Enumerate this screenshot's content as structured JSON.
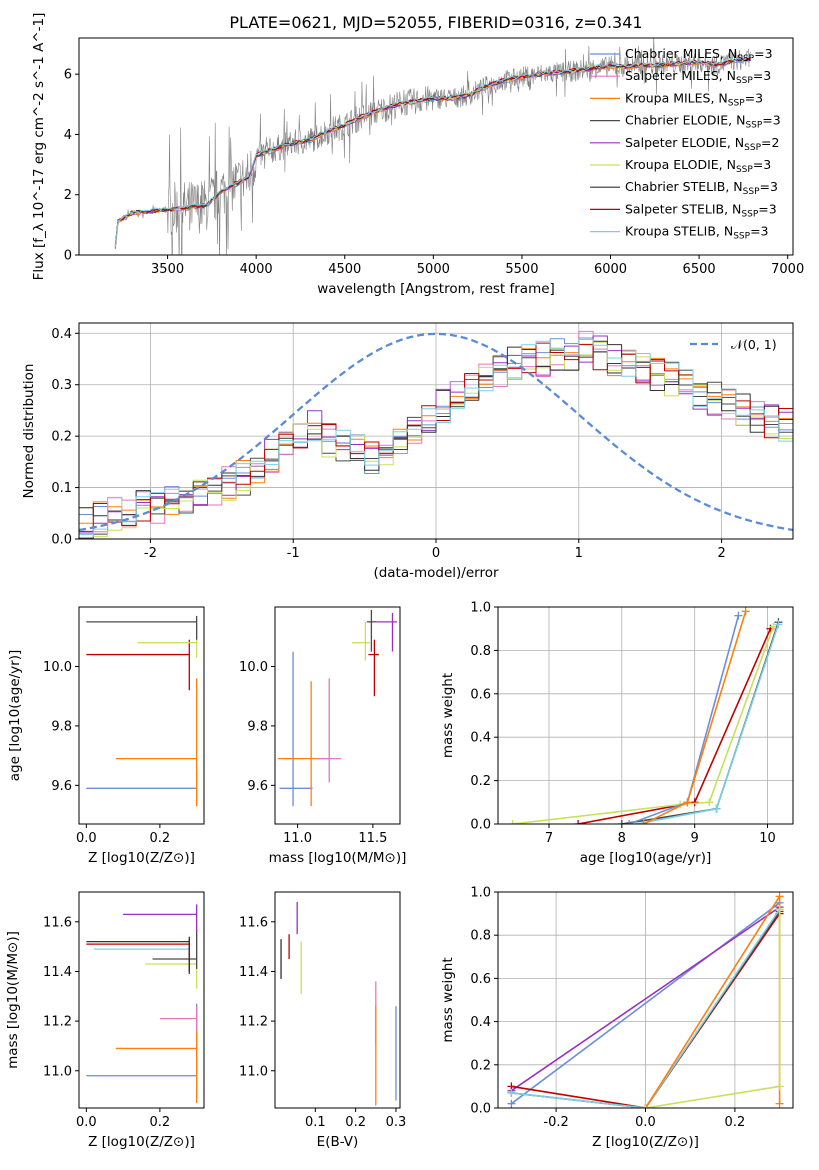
{
  "title": "PLATE=0621, MJD=52055, FIBERID=0316, z=0.341",
  "colors": {
    "chabrier_miles": "#6a8fd8",
    "salpeter_miles": "#e377c2",
    "kroupa_miles": "#ff7f0e",
    "chabrier_elodie": "#4a4a4a",
    "salpeter_elodie": "#9b30c0",
    "kroupa_elodie": "#c8e05a",
    "chabrier_stelib": "#333333",
    "salpeter_stelib": "#c00000",
    "kroupa_stelib": "#7ccfe0",
    "data_spectrum": "#808080",
    "normal_curve": "#5b8bd6",
    "grid": "#b0b0b0"
  },
  "chart_data": [
    {
      "type": "line",
      "panel": "spectrum",
      "xlabel": "wavelength [Angstrom, rest frame]",
      "ylabel": "Flux [f_λ 10^-17 erg cm^-2 s^-1 A^-1]",
      "xlim": [
        3000,
        7030
      ],
      "ylim": [
        0,
        7.2
      ],
      "xticks": [
        3500,
        4000,
        4500,
        5000,
        5500,
        6000,
        6500,
        7000
      ],
      "yticks": [
        0,
        2,
        4,
        6
      ],
      "grid": false,
      "legend_position": "top-right",
      "legend": [
        {
          "key": "chabrier_miles",
          "text": "Chabrier MILES, N",
          "sub": "SSP",
          "tail": "=3"
        },
        {
          "key": "salpeter_miles",
          "text": "Salpeter MILES, N",
          "sub": "SSP",
          "tail": "=3"
        },
        {
          "key": "kroupa_miles",
          "text": "Kroupa MILES, N",
          "sub": "SSP",
          "tail": "=3"
        },
        {
          "key": "chabrier_elodie",
          "text": "Chabrier ELODIE, N",
          "sub": "SSP",
          "tail": "=3"
        },
        {
          "key": "salpeter_elodie",
          "text": "Salpeter ELODIE, N",
          "sub": "SSP",
          "tail": "=2"
        },
        {
          "key": "kroupa_elodie",
          "text": "Kroupa ELODIE, N",
          "sub": "SSP",
          "tail": "=3"
        },
        {
          "key": "chabrier_stelib",
          "text": "Chabrier STELIB, N",
          "sub": "SSP",
          "tail": "=3"
        },
        {
          "key": "salpeter_stelib",
          "text": "Salpeter STELIB, N",
          "sub": "SSP",
          "tail": "=3"
        },
        {
          "key": "kroupa_stelib",
          "text": "Kroupa STELIB, N",
          "sub": "SSP",
          "tail": "=3"
        }
      ],
      "model_continuum": [
        [
          3200,
          0
        ],
        [
          3220,
          1.1
        ],
        [
          3300,
          1.4
        ],
        [
          3400,
          1.45
        ],
        [
          3500,
          1.5
        ],
        [
          3560,
          1.55
        ],
        [
          3650,
          1.6
        ],
        [
          3720,
          1.65
        ],
        [
          3800,
          2.1
        ],
        [
          3860,
          2.3
        ],
        [
          3900,
          2.4
        ],
        [
          3960,
          2.6
        ],
        [
          4000,
          3.3
        ],
        [
          4100,
          3.5
        ],
        [
          4200,
          3.7
        ],
        [
          4300,
          3.8
        ],
        [
          4400,
          4.1
        ],
        [
          4500,
          4.3
        ],
        [
          4600,
          4.6
        ],
        [
          4700,
          4.8
        ],
        [
          4800,
          5.0
        ],
        [
          4900,
          5.1
        ],
        [
          5000,
          5.2
        ],
        [
          5100,
          5.2
        ],
        [
          5200,
          5.3
        ],
        [
          5300,
          5.6
        ],
        [
          5400,
          5.8
        ],
        [
          5500,
          5.9
        ],
        [
          5600,
          6.0
        ],
        [
          5700,
          6.05
        ],
        [
          5800,
          6.1
        ],
        [
          5900,
          6.2
        ],
        [
          6000,
          6.25
        ],
        [
          6100,
          6.25
        ],
        [
          6200,
          6.3
        ],
        [
          6300,
          6.3
        ],
        [
          6400,
          6.35
        ],
        [
          6500,
          6.4
        ],
        [
          6600,
          6.3
        ],
        [
          6700,
          6.45
        ],
        [
          6800,
          6.5
        ]
      ]
    },
    {
      "type": "line",
      "panel": "residual-histogram",
      "xlabel": "(data-model)/error",
      "ylabel": "Normed distribution",
      "xlim": [
        -2.5,
        2.5
      ],
      "ylim": [
        0,
        0.42
      ],
      "xticks": [
        -2,
        -1,
        0,
        1,
        2
      ],
      "yticks": [
        0.0,
        0.1,
        0.2,
        0.3,
        0.4
      ],
      "grid": true,
      "legend_position": "top-right",
      "legend": [
        {
          "key": "normal_curve",
          "text": "𝒩(0, 1)"
        }
      ],
      "bin_width": 0.1,
      "reference_histogram": [
        0.03,
        0.04,
        0.05,
        0.05,
        0.06,
        0.06,
        0.07,
        0.08,
        0.09,
        0.1,
        0.11,
        0.12,
        0.14,
        0.16,
        0.18,
        0.2,
        0.22,
        0.19,
        0.18,
        0.17,
        0.16,
        0.17,
        0.2,
        0.22,
        0.24,
        0.26,
        0.28,
        0.3,
        0.32,
        0.33,
        0.34,
        0.35,
        0.35,
        0.36,
        0.36,
        0.37,
        0.36,
        0.35,
        0.34,
        0.33,
        0.32,
        0.31,
        0.3,
        0.28,
        0.27,
        0.26,
        0.25,
        0.24,
        0.23,
        0.22,
        0.21,
        0.2,
        0.19,
        0.17,
        0.16,
        0.15,
        0.13,
        0.12,
        0.1,
        0.09,
        0.08,
        0.07,
        0.07,
        0.06,
        0.05,
        0.05,
        0.04,
        0.04,
        0.04,
        0.03,
        0.03,
        0.03,
        0.03,
        0.03,
        0.03,
        0.03,
        0.03,
        0.03,
        0.03,
        0.03
      ]
    },
    {
      "type": "scatter",
      "panel": "age-vs-Z",
      "xlabel": "Z [log10(Z/Z⊙)]",
      "ylabel": "age  [log10(age/yr)]",
      "xlim": [
        -0.02,
        0.32
      ],
      "ylim": [
        9.47,
        10.2
      ],
      "xticks": [
        0.0,
        0.2
      ],
      "yticks": [
        9.6,
        9.8,
        10.0
      ],
      "points": [
        {
          "key": "chabrier_miles",
          "x": 0.3,
          "y": 9.59,
          "xerr": [
            0.3,
            0.0
          ],
          "yerr": [
            0.06,
            0.06
          ]
        },
        {
          "key": "kroupa_miles",
          "x": 0.3,
          "y": 9.69,
          "xerr": [
            0.22,
            0.0
          ],
          "yerr": [
            0.16,
            0.27
          ]
        },
        {
          "key": "salpeter_stelib",
          "x": 0.28,
          "y": 10.04,
          "xerr": [
            0.28,
            0.0
          ],
          "yerr": [
            0.12,
            0.05
          ]
        },
        {
          "key": "kroupa_elodie",
          "x": 0.3,
          "y": 10.08,
          "xerr": [
            0.16,
            0.0
          ],
          "yerr": [
            0.05,
            0.06
          ]
        },
        {
          "key": "chabrier_elodie",
          "x": 0.3,
          "y": 10.15,
          "xerr": [
            0.3,
            0.0
          ],
          "yerr": [
            0.06,
            0.02
          ]
        }
      ]
    },
    {
      "type": "scatter",
      "panel": "age-vs-mass",
      "xlabel": "mass [log10(M/M⊙)]",
      "ylabel": "",
      "xlim": [
        10.85,
        11.68
      ],
      "ylim": [
        9.47,
        10.2
      ],
      "xticks": [
        11.0,
        11.5
      ],
      "yticks": [
        9.6,
        9.8,
        10.0
      ],
      "points": [
        {
          "key": "chabrier_miles",
          "x": 10.97,
          "y": 9.59,
          "xerr": [
            0.09,
            0.13
          ],
          "yerr": [
            0.06,
            0.46
          ]
        },
        {
          "key": "kroupa_miles",
          "x": 11.09,
          "y": 9.69,
          "xerr": [
            0.22,
            0.13
          ],
          "yerr": [
            0.16,
            0.26
          ]
        },
        {
          "key": "salpeter_miles",
          "x": 11.21,
          "y": 9.69,
          "xerr": [
            0.08,
            0.08
          ],
          "yerr": [
            0.08,
            0.27
          ]
        },
        {
          "key": "salpeter_stelib",
          "x": 11.51,
          "y": 10.04,
          "xerr": [
            0.04,
            0.03
          ],
          "yerr": [
            0.14,
            0.05
          ]
        },
        {
          "key": "kroupa_elodie",
          "x": 11.45,
          "y": 10.08,
          "xerr": [
            0.09,
            0.03
          ],
          "yerr": [
            0.06,
            0.07
          ]
        },
        {
          "key": "chabrier_elodie",
          "x": 11.49,
          "y": 10.15,
          "xerr": [
            0.03,
            0.03
          ],
          "yerr": [
            0.1,
            0.04
          ]
        },
        {
          "key": "salpeter_elodie",
          "x": 11.63,
          "y": 10.15,
          "xerr": [
            0.13,
            0.03
          ],
          "yerr": [
            0.1,
            0.03
          ]
        }
      ]
    },
    {
      "type": "line",
      "panel": "mass-weight-vs-age",
      "xlabel": "age  [log10(age/yr)]",
      "ylabel": "mass weight",
      "xlim": [
        6.3,
        10.35
      ],
      "ylim": [
        0,
        1.0
      ],
      "xticks": [
        7,
        8,
        9,
        10
      ],
      "yticks": [
        0.0,
        0.2,
        0.4,
        0.6,
        0.8,
        1.0
      ],
      "grid": true,
      "series": [
        {
          "key": "salpeter_stelib",
          "x": [
            7.4,
            9.0,
            10.04
          ],
          "y": [
            0.0,
            0.1,
            0.9
          ]
        },
        {
          "key": "kroupa_elodie",
          "x": [
            6.5,
            8.8,
            9.2,
            10.08
          ],
          "y": [
            0.0,
            0.09,
            0.1,
            0.91
          ]
        },
        {
          "key": "chabrier_elodie",
          "x": [
            8.0,
            9.3,
            10.15
          ],
          "y": [
            0.0,
            0.07,
            0.93
          ]
        },
        {
          "key": "kroupa_stelib",
          "x": [
            8.2,
            9.3,
            10.15
          ],
          "y": [
            0.0,
            0.07,
            0.92
          ]
        },
        {
          "key": "chabrier_miles",
          "x": [
            8.1,
            8.9,
            9.6
          ],
          "y": [
            0.0,
            0.1,
            0.96
          ]
        },
        {
          "key": "kroupa_miles",
          "x": [
            8.3,
            8.9,
            9.7
          ],
          "y": [
            0.0,
            0.1,
            0.98
          ]
        }
      ]
    },
    {
      "type": "scatter",
      "panel": "mass-vs-Z",
      "xlabel": "Z [log10(Z/Z⊙)]",
      "ylabel": "mass [log10(M/M⊙)]",
      "xlim": [
        -0.02,
        0.32
      ],
      "ylim": [
        10.85,
        11.72
      ],
      "xticks": [
        0.0,
        0.2
      ],
      "yticks": [
        11.0,
        11.2,
        11.4,
        11.6
      ],
      "points": [
        {
          "key": "chabrier_miles",
          "x": 0.3,
          "y": 10.98,
          "xerr": [
            0.3,
            0.0
          ],
          "yerr": [
            0.09,
            0.29
          ]
        },
        {
          "key": "kroupa_miles",
          "x": 0.3,
          "y": 11.09,
          "xerr": [
            0.22,
            0.0
          ],
          "yerr": [
            0.22,
            0.17
          ]
        },
        {
          "key": "salpeter_miles",
          "x": 0.3,
          "y": 11.21,
          "xerr": [
            0.1,
            0.0
          ],
          "yerr": [
            0.05,
            0.05
          ]
        },
        {
          "key": "kroupa_elodie",
          "x": 0.3,
          "y": 11.43,
          "xerr": [
            0.14,
            0.0
          ],
          "yerr": [
            0.1,
            0.12
          ]
        },
        {
          "key": "chabrier_elodie",
          "x": 0.3,
          "y": 11.45,
          "xerr": [
            0.12,
            0.0
          ],
          "yerr": [
            0.04,
            0.12
          ]
        },
        {
          "key": "kroupa_stelib",
          "x": 0.28,
          "y": 11.49,
          "xerr": [
            0.26,
            0.0
          ],
          "yerr": [
            0.05,
            0.03
          ]
        },
        {
          "key": "salpeter_stelib",
          "x": 0.28,
          "y": 11.51,
          "xerr": [
            0.28,
            0.0
          ],
          "yerr": [
            0.11,
            0.02
          ]
        },
        {
          "key": "chabrier_stelib",
          "x": 0.28,
          "y": 11.52,
          "xerr": [
            0.28,
            0.0
          ],
          "yerr": [
            0.13,
            0.02
          ]
        },
        {
          "key": "salpeter_elodie",
          "x": 0.3,
          "y": 11.63,
          "xerr": [
            0.2,
            0.0
          ],
          "yerr": [
            0.07,
            0.04
          ]
        }
      ]
    },
    {
      "type": "scatter",
      "panel": "mass-vs-EBV",
      "xlabel": "E(B-V)",
      "ylabel": "",
      "xlim": [
        0.0,
        0.31
      ],
      "ylim": [
        10.85,
        11.72
      ],
      "xticks": [
        0.1,
        0.2,
        0.3
      ],
      "yticks": [
        11.0,
        11.2,
        11.4,
        11.6
      ],
      "points": [
        {
          "key": "chabrier_stelib",
          "x": 0.015,
          "y": 11.45,
          "yerr": [
            0.08,
            0.08
          ]
        },
        {
          "key": "salpeter_stelib",
          "x": 0.035,
          "y": 11.5,
          "yerr": [
            0.05,
            0.05
          ]
        },
        {
          "key": "salpeter_elodie",
          "x": 0.055,
          "y": 11.6,
          "yerr": [
            0.05,
            0.08
          ]
        },
        {
          "key": "kroupa_elodie",
          "x": 0.065,
          "y": 11.43,
          "yerr": [
            0.12,
            0.09
          ]
        },
        {
          "key": "salpeter_miles",
          "x": 0.25,
          "y": 11.21,
          "yerr": [
            0.1,
            0.15
          ]
        },
        {
          "key": "kroupa_miles",
          "x": 0.25,
          "y": 11.09,
          "yerr": [
            0.23,
            0.17
          ]
        },
        {
          "key": "chabrier_miles",
          "x": 0.3,
          "y": 11.07,
          "yerr": [
            0.19,
            0.19
          ]
        }
      ]
    },
    {
      "type": "line",
      "panel": "mass-weight-vs-Z",
      "xlabel": "Z [log10(Z/Z⊙)]",
      "ylabel": "mass weight",
      "xlim": [
        -0.33,
        0.33
      ],
      "ylim": [
        0,
        1.0
      ],
      "xticks": [
        -0.2,
        0.0,
        0.2
      ],
      "yticks": [
        0.0,
        0.2,
        0.4,
        0.6,
        0.8,
        1.0
      ],
      "grid": true,
      "series": [
        {
          "key": "chabrier_miles",
          "x": [
            -0.3,
            0.3
          ],
          "y": [
            0.02,
            0.95
          ]
        },
        {
          "key": "salpeter_elodie",
          "x": [
            -0.3,
            0.3
          ],
          "y": [
            0.08,
            0.93
          ]
        },
        {
          "key": "salpeter_stelib",
          "x": [
            -0.3,
            0.0,
            0.3
          ],
          "y": [
            0.1,
            0.0,
            0.9
          ]
        },
        {
          "key": "chabrier_elodie",
          "x": [
            -0.3,
            0.0,
            0.3
          ],
          "y": [
            0.07,
            0.0,
            0.91
          ]
        },
        {
          "key": "kroupa_stelib",
          "x": [
            -0.3,
            0.0,
            0.3
          ],
          "y": [
            0.07,
            0.0,
            0.92
          ]
        },
        {
          "key": "kroupa_miles",
          "x": [
            0.0,
            0.3,
            0.3
          ],
          "y": [
            0.0,
            0.98,
            0.02
          ]
        },
        {
          "key": "kroupa_elodie",
          "x": [
            0.0,
            0.3,
            0.3
          ],
          "y": [
            0.0,
            0.1,
            0.92
          ]
        }
      ]
    }
  ]
}
